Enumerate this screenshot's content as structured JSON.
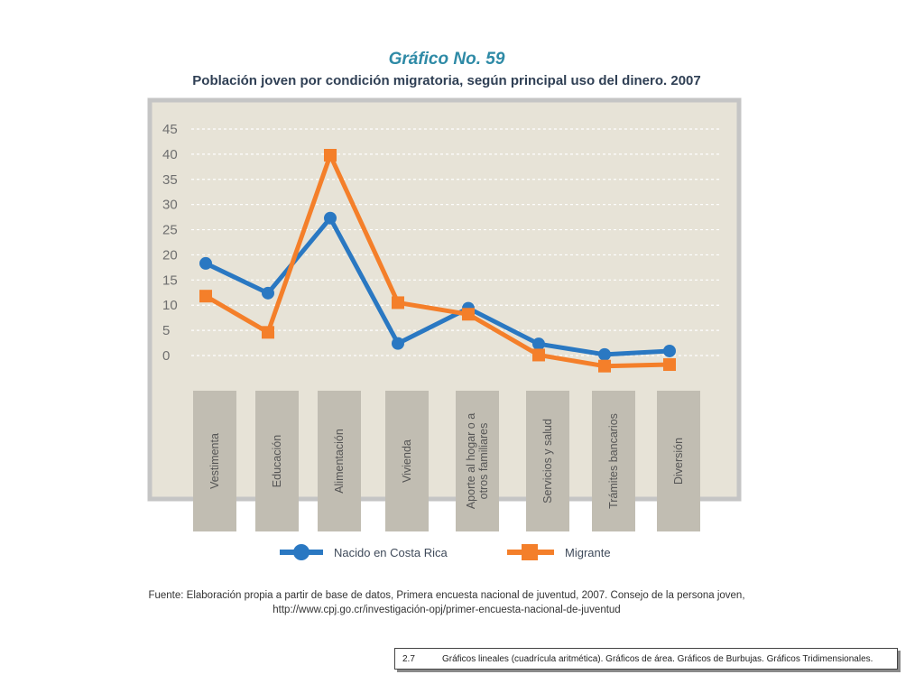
{
  "header": {
    "chart_number": "Gráfico No. 59",
    "title": "Población joven por condición migratoria, según principal uso del dinero. 2007"
  },
  "legend": {
    "items": [
      {
        "label": "Nacido en Costa Rica",
        "color": "#2a78c2",
        "marker": "circle"
      },
      {
        "label": "Migrante",
        "color": "#f47f2a",
        "marker": "square"
      }
    ]
  },
  "source": {
    "text": "Fuente: Elaboración propia a partir de base de datos, Primera encuesta nacional de juventud, 2007. Consejo de la persona joven, http://www.cpj.go.cr/investigación-opj/primer-encuesta-nacional-de-juventud"
  },
  "footer": {
    "number": "2.7",
    "text": "Gráficos lineales (cuadrícula aritmética). Gráficos de área. Gráficos de Burbujas. Gráficos Tridimensionales."
  },
  "colors": {
    "plot_background": "#e7e3d7",
    "plot_border": "#c5c5c5",
    "category_box": "#c1bdb2",
    "category_text": "#555555",
    "tick_text": "#6f6f6f",
    "grid": "#ffffff"
  },
  "chart_data": {
    "type": "line",
    "categories": [
      "Vestimenta",
      "Educación",
      "Alimentación",
      "Vivienda",
      "Aporte al hogar o a otros familiares",
      "Servicios y salud",
      "Trámites bancarios",
      "Diversión"
    ],
    "category_lines": [
      [
        "Vestimenta"
      ],
      [
        "Educación"
      ],
      [
        "Alimentación"
      ],
      [
        "Vivienda"
      ],
      [
        "Aporte al hogar o a",
        "otros familiares"
      ],
      [
        "Servicios y salud"
      ],
      [
        "Trámites bancarios"
      ],
      [
        "Diversión"
      ]
    ],
    "series": [
      {
        "name": "Nacido en Costa Rica",
        "values": [
          18.3,
          12.4,
          27.3,
          2.4,
          9.4,
          2.3,
          0.2,
          0.9
        ],
        "color": "#2a78c2",
        "marker": "circle"
      },
      {
        "name": "Migrante",
        "values": [
          11.8,
          4.6,
          39.8,
          10.5,
          8.2,
          0.1,
          -2.1,
          -1.8
        ],
        "color": "#f47f2a",
        "marker": "square"
      }
    ],
    "yticks": [
      0,
      5,
      10,
      15,
      20,
      25,
      30,
      35,
      40,
      45
    ],
    "ylim": [
      0,
      45
    ],
    "grid": true,
    "xlabel": "",
    "ylabel": "",
    "legend_position": "bottom"
  }
}
